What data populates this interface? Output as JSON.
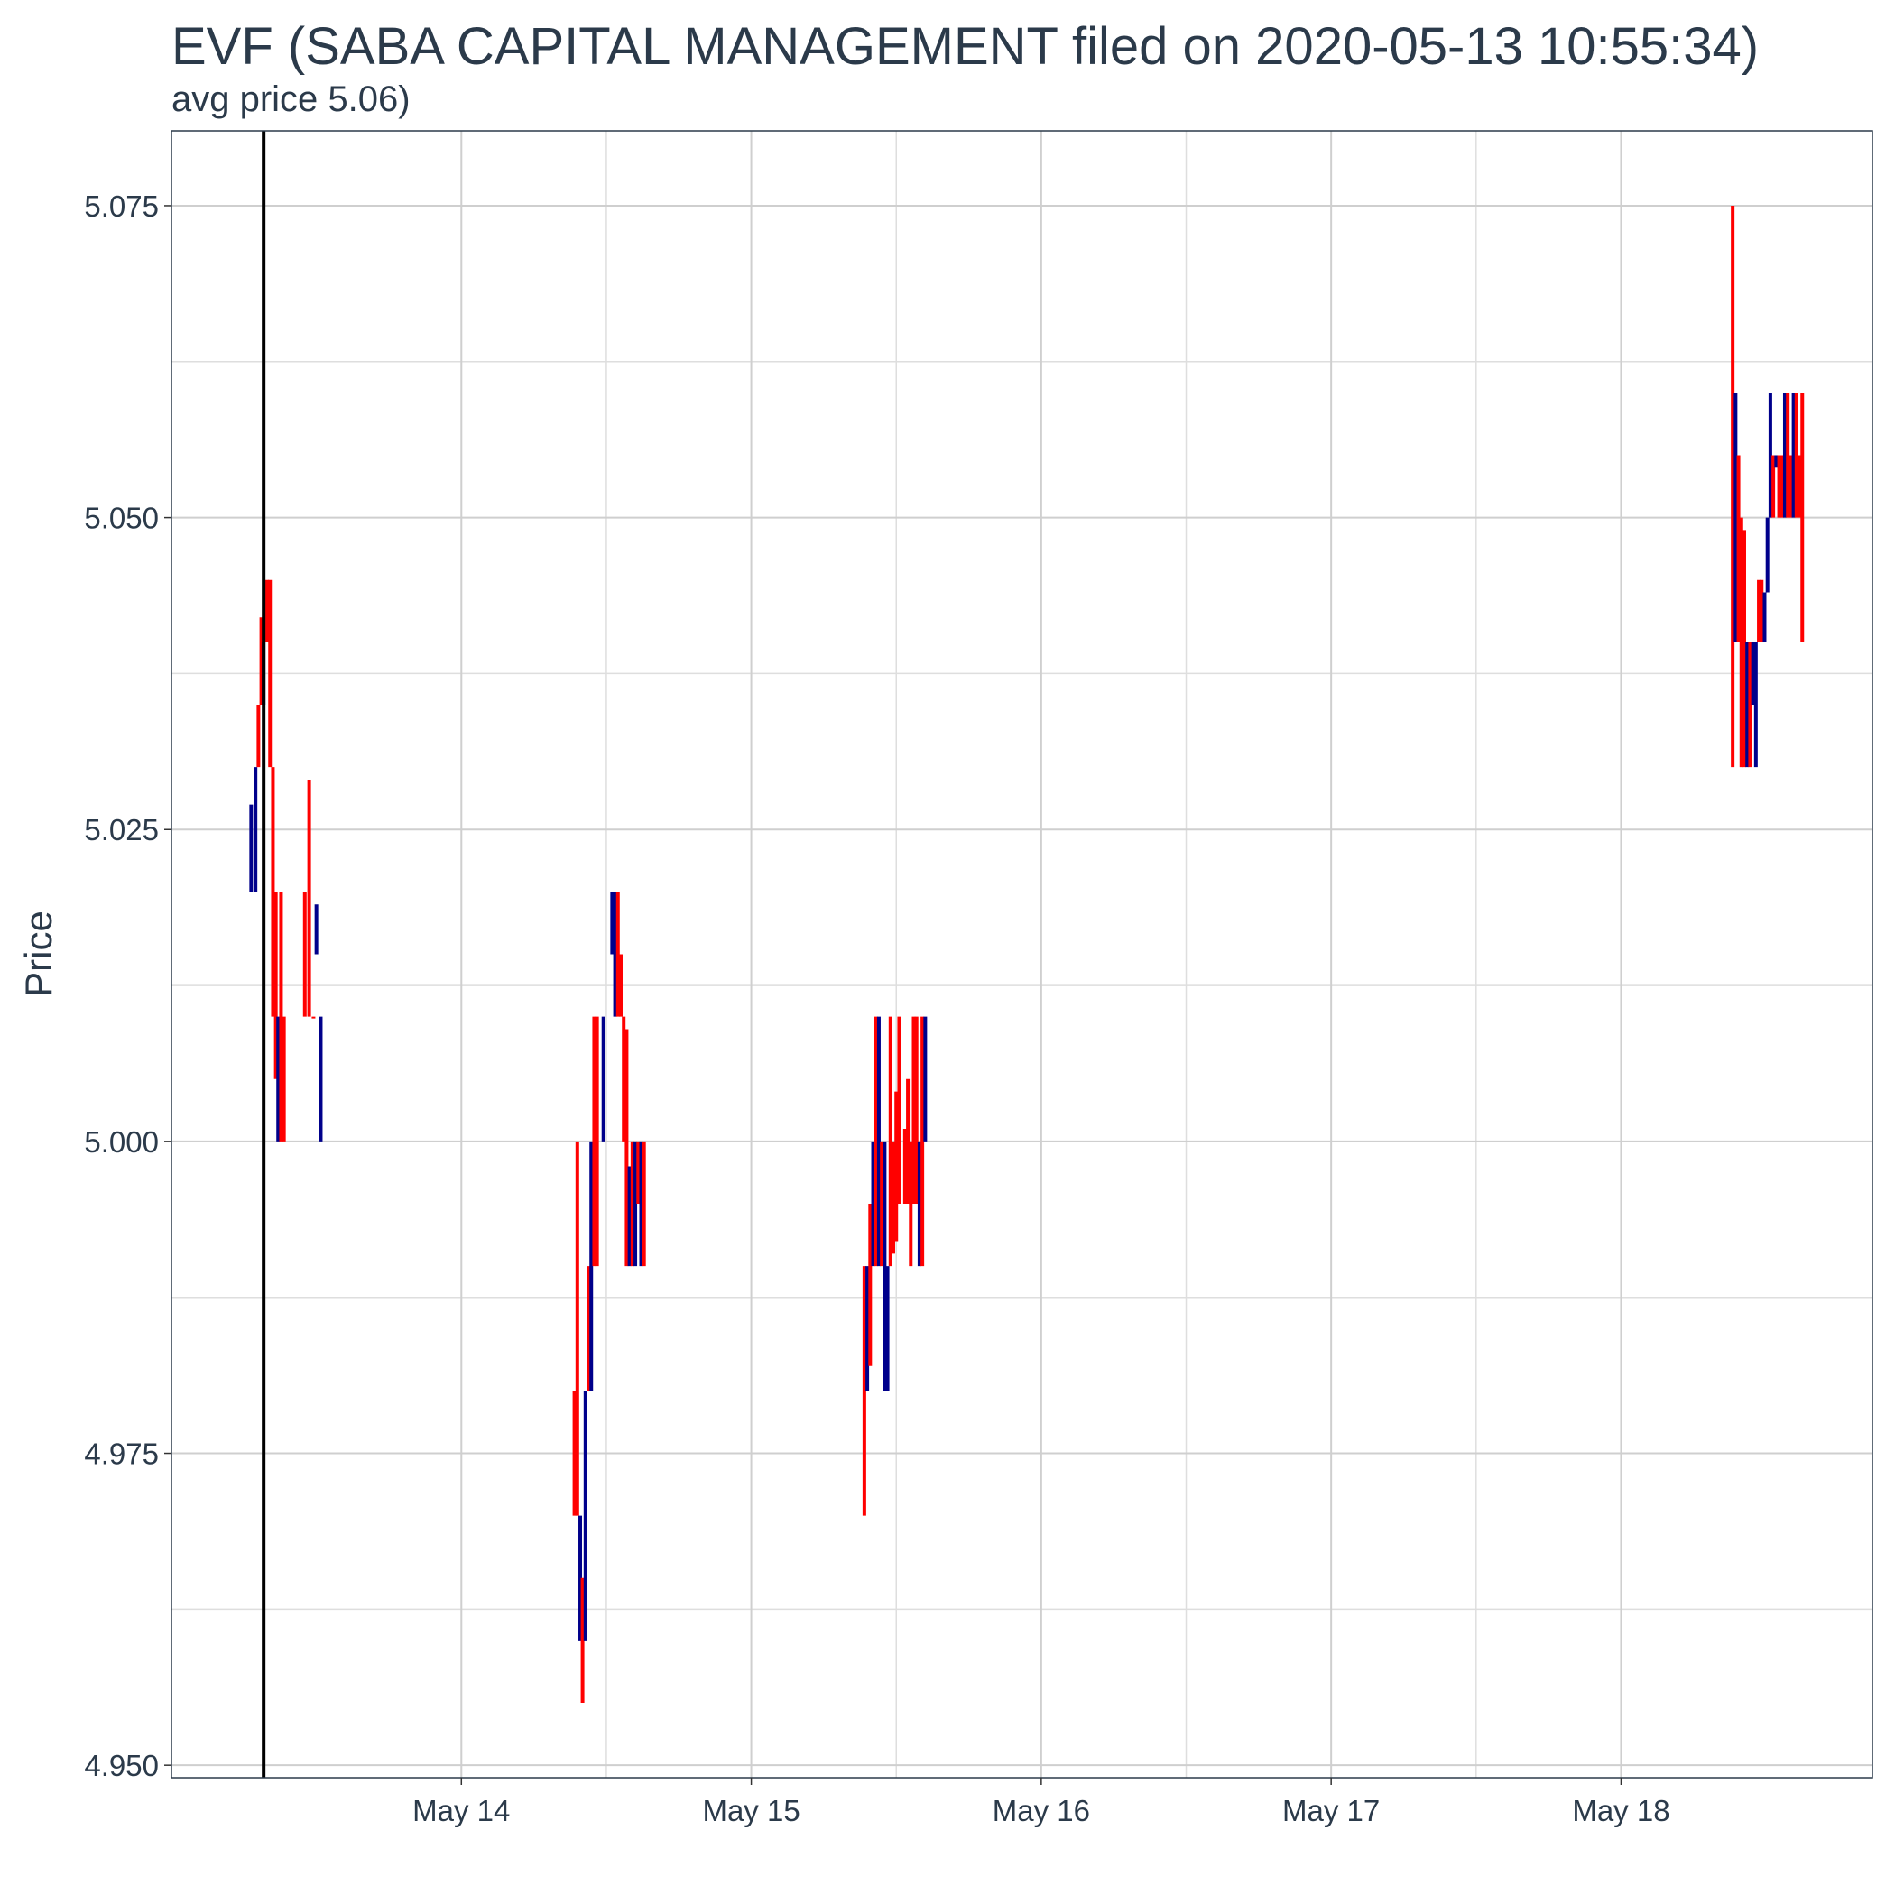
{
  "title": "EVF (SABA CAPITAL MANAGEMENT filed on 2020-05-13 10:55:34)",
  "subtitle": "avg price 5.06)",
  "chart_data": {
    "type": "candlestick",
    "ylabel": "Price",
    "xlabel": "",
    "ylim": [
      4.949,
      5.081
    ],
    "xlim": [
      13.0,
      18.867
    ],
    "yticks": [
      4.95,
      4.975,
      5.0,
      5.025,
      5.05,
      5.075
    ],
    "ytick_labels": [
      "4.950",
      "4.975",
      "5.000",
      "5.025",
      "5.050",
      "5.075"
    ],
    "xticks": [
      14,
      15,
      16,
      17,
      18
    ],
    "xtick_labels": [
      "May 14",
      "May 15",
      "May 16",
      "May 17",
      "May 18"
    ],
    "grid": true,
    "filing_x": 13.318,
    "colors": {
      "up": "#00008b",
      "down": "#ff0000",
      "filing_line": "#000000"
    },
    "candles": [
      {
        "x": 13.275,
        "low": 5.02,
        "high": 5.027,
        "dir": "up"
      },
      {
        "x": 13.29,
        "low": 5.02,
        "high": 5.03,
        "dir": "up"
      },
      {
        "x": 13.3,
        "low": 5.03,
        "high": 5.035,
        "dir": "down"
      },
      {
        "x": 13.31,
        "low": 5.035,
        "high": 5.042,
        "dir": "down"
      },
      {
        "x": 13.318,
        "low": 5.035,
        "high": 5.04,
        "dir": "up"
      },
      {
        "x": 13.33,
        "low": 5.04,
        "high": 5.045,
        "dir": "down"
      },
      {
        "x": 13.34,
        "low": 5.03,
        "high": 5.045,
        "dir": "down"
      },
      {
        "x": 13.35,
        "low": 5.01,
        "high": 5.03,
        "dir": "down"
      },
      {
        "x": 13.36,
        "low": 5.005,
        "high": 5.02,
        "dir": "down"
      },
      {
        "x": 13.368,
        "low": 5.0,
        "high": 5.01,
        "dir": "up"
      },
      {
        "x": 13.378,
        "low": 5.0,
        "high": 5.02,
        "dir": "down"
      },
      {
        "x": 13.388,
        "low": 5.0,
        "high": 5.01,
        "dir": "down"
      },
      {
        "x": 13.46,
        "low": 5.01,
        "high": 5.02,
        "dir": "down"
      },
      {
        "x": 13.475,
        "low": 5.01,
        "high": 5.029,
        "dir": "down"
      },
      {
        "x": 13.49,
        "low": 5.01,
        "high": 5.01,
        "dir": "down"
      },
      {
        "x": 13.5,
        "low": 5.015,
        "high": 5.019,
        "dir": "up"
      },
      {
        "x": 13.515,
        "low": 5.0,
        "high": 5.01,
        "dir": "up"
      },
      {
        "x": 14.39,
        "low": 4.97,
        "high": 4.98,
        "dir": "down"
      },
      {
        "x": 14.4,
        "low": 4.97,
        "high": 5.0,
        "dir": "down"
      },
      {
        "x": 14.41,
        "low": 4.96,
        "high": 4.97,
        "dir": "up"
      },
      {
        "x": 14.418,
        "low": 4.955,
        "high": 4.965,
        "dir": "down"
      },
      {
        "x": 14.428,
        "low": 4.96,
        "high": 4.98,
        "dir": "up"
      },
      {
        "x": 14.438,
        "low": 4.98,
        "high": 4.99,
        "dir": "down"
      },
      {
        "x": 14.448,
        "low": 4.98,
        "high": 5.0,
        "dir": "up"
      },
      {
        "x": 14.458,
        "low": 4.99,
        "high": 5.01,
        "dir": "down"
      },
      {
        "x": 14.468,
        "low": 4.99,
        "high": 5.01,
        "dir": "down"
      },
      {
        "x": 14.49,
        "low": 5.0,
        "high": 5.01,
        "dir": "up"
      },
      {
        "x": 14.52,
        "low": 5.015,
        "high": 5.02,
        "dir": "up"
      },
      {
        "x": 14.53,
        "low": 5.01,
        "high": 5.02,
        "dir": "up"
      },
      {
        "x": 14.54,
        "low": 5.01,
        "high": 5.02,
        "dir": "down"
      },
      {
        "x": 14.55,
        "low": 5.01,
        "high": 5.015,
        "dir": "down"
      },
      {
        "x": 14.56,
        "low": 5.0,
        "high": 5.01,
        "dir": "down"
      },
      {
        "x": 14.57,
        "low": 4.99,
        "high": 5.009,
        "dir": "down"
      },
      {
        "x": 14.58,
        "low": 4.99,
        "high": 4.998,
        "dir": "up"
      },
      {
        "x": 14.59,
        "low": 4.99,
        "high": 5.0,
        "dir": "down"
      },
      {
        "x": 14.6,
        "low": 4.99,
        "high": 5.0,
        "dir": "up"
      },
      {
        "x": 14.61,
        "low": 4.995,
        "high": 5.0,
        "dir": "down"
      },
      {
        "x": 14.62,
        "low": 4.99,
        "high": 5.0,
        "dir": "up"
      },
      {
        "x": 14.63,
        "low": 4.99,
        "high": 5.0,
        "dir": "down"
      },
      {
        "x": 15.39,
        "low": 4.97,
        "high": 4.99,
        "dir": "down"
      },
      {
        "x": 15.4,
        "low": 4.98,
        "high": 4.99,
        "dir": "up"
      },
      {
        "x": 15.41,
        "low": 4.982,
        "high": 4.995,
        "dir": "down"
      },
      {
        "x": 15.42,
        "low": 4.99,
        "high": 5.0,
        "dir": "up"
      },
      {
        "x": 15.43,
        "low": 4.99,
        "high": 5.01,
        "dir": "down"
      },
      {
        "x": 15.44,
        "low": 4.99,
        "high": 5.01,
        "dir": "up"
      },
      {
        "x": 15.45,
        "low": 4.99,
        "high": 5.0,
        "dir": "down"
      },
      {
        "x": 15.46,
        "low": 4.98,
        "high": 5.0,
        "dir": "up"
      },
      {
        "x": 15.47,
        "low": 4.98,
        "high": 4.99,
        "dir": "up"
      },
      {
        "x": 15.48,
        "low": 4.99,
        "high": 5.01,
        "dir": "down"
      },
      {
        "x": 15.49,
        "low": 4.991,
        "high": 5.0,
        "dir": "down"
      },
      {
        "x": 15.5,
        "low": 4.992,
        "high": 5.004,
        "dir": "down"
      },
      {
        "x": 15.51,
        "low": 4.995,
        "high": 5.01,
        "dir": "down"
      },
      {
        "x": 15.53,
        "low": 4.995,
        "high": 5.001,
        "dir": "down"
      },
      {
        "x": 15.54,
        "low": 4.995,
        "high": 5.005,
        "dir": "down"
      },
      {
        "x": 15.55,
        "low": 4.99,
        "high": 5.0,
        "dir": "down"
      },
      {
        "x": 15.56,
        "low": 4.995,
        "high": 5.01,
        "dir": "down"
      },
      {
        "x": 15.57,
        "low": 4.995,
        "high": 5.01,
        "dir": "down"
      },
      {
        "x": 15.58,
        "low": 4.99,
        "high": 5.0,
        "dir": "up"
      },
      {
        "x": 15.59,
        "low": 4.99,
        "high": 5.01,
        "dir": "down"
      },
      {
        "x": 15.6,
        "low": 5.0,
        "high": 5.01,
        "dir": "up"
      },
      {
        "x": 18.385,
        "low": 5.03,
        "high": 5.075,
        "dir": "down"
      },
      {
        "x": 18.395,
        "low": 5.04,
        "high": 5.06,
        "dir": "up"
      },
      {
        "x": 18.405,
        "low": 5.04,
        "high": 5.055,
        "dir": "down"
      },
      {
        "x": 18.415,
        "low": 5.03,
        "high": 5.05,
        "dir": "down"
      },
      {
        "x": 18.425,
        "low": 5.03,
        "high": 5.049,
        "dir": "down"
      },
      {
        "x": 18.435,
        "low": 5.03,
        "high": 5.04,
        "dir": "up"
      },
      {
        "x": 18.445,
        "low": 5.03,
        "high": 5.04,
        "dir": "down"
      },
      {
        "x": 18.455,
        "low": 5.035,
        "high": 5.04,
        "dir": "up"
      },
      {
        "x": 18.465,
        "low": 5.03,
        "high": 5.04,
        "dir": "up"
      },
      {
        "x": 18.475,
        "low": 5.04,
        "high": 5.045,
        "dir": "down"
      },
      {
        "x": 18.485,
        "low": 5.04,
        "high": 5.045,
        "dir": "down"
      },
      {
        "x": 18.495,
        "low": 5.04,
        "high": 5.044,
        "dir": "up"
      },
      {
        "x": 18.505,
        "low": 5.044,
        "high": 5.05,
        "dir": "up"
      },
      {
        "x": 18.515,
        "low": 5.05,
        "high": 5.06,
        "dir": "up"
      },
      {
        "x": 18.525,
        "low": 5.05,
        "high": 5.055,
        "dir": "down"
      },
      {
        "x": 18.535,
        "low": 5.054,
        "high": 5.055,
        "dir": "up"
      },
      {
        "x": 18.545,
        "low": 5.05,
        "high": 5.055,
        "dir": "down"
      },
      {
        "x": 18.555,
        "low": 5.05,
        "high": 5.055,
        "dir": "down"
      },
      {
        "x": 18.565,
        "low": 5.05,
        "high": 5.06,
        "dir": "up"
      },
      {
        "x": 18.575,
        "low": 5.05,
        "high": 5.06,
        "dir": "down"
      },
      {
        "x": 18.585,
        "low": 5.05,
        "high": 5.055,
        "dir": "down"
      },
      {
        "x": 18.595,
        "low": 5.05,
        "high": 5.06,
        "dir": "up"
      },
      {
        "x": 18.605,
        "low": 5.05,
        "high": 5.06,
        "dir": "down"
      },
      {
        "x": 18.615,
        "low": 5.05,
        "high": 5.055,
        "dir": "down"
      },
      {
        "x": 18.625,
        "low": 5.04,
        "high": 5.06,
        "dir": "down"
      }
    ]
  }
}
